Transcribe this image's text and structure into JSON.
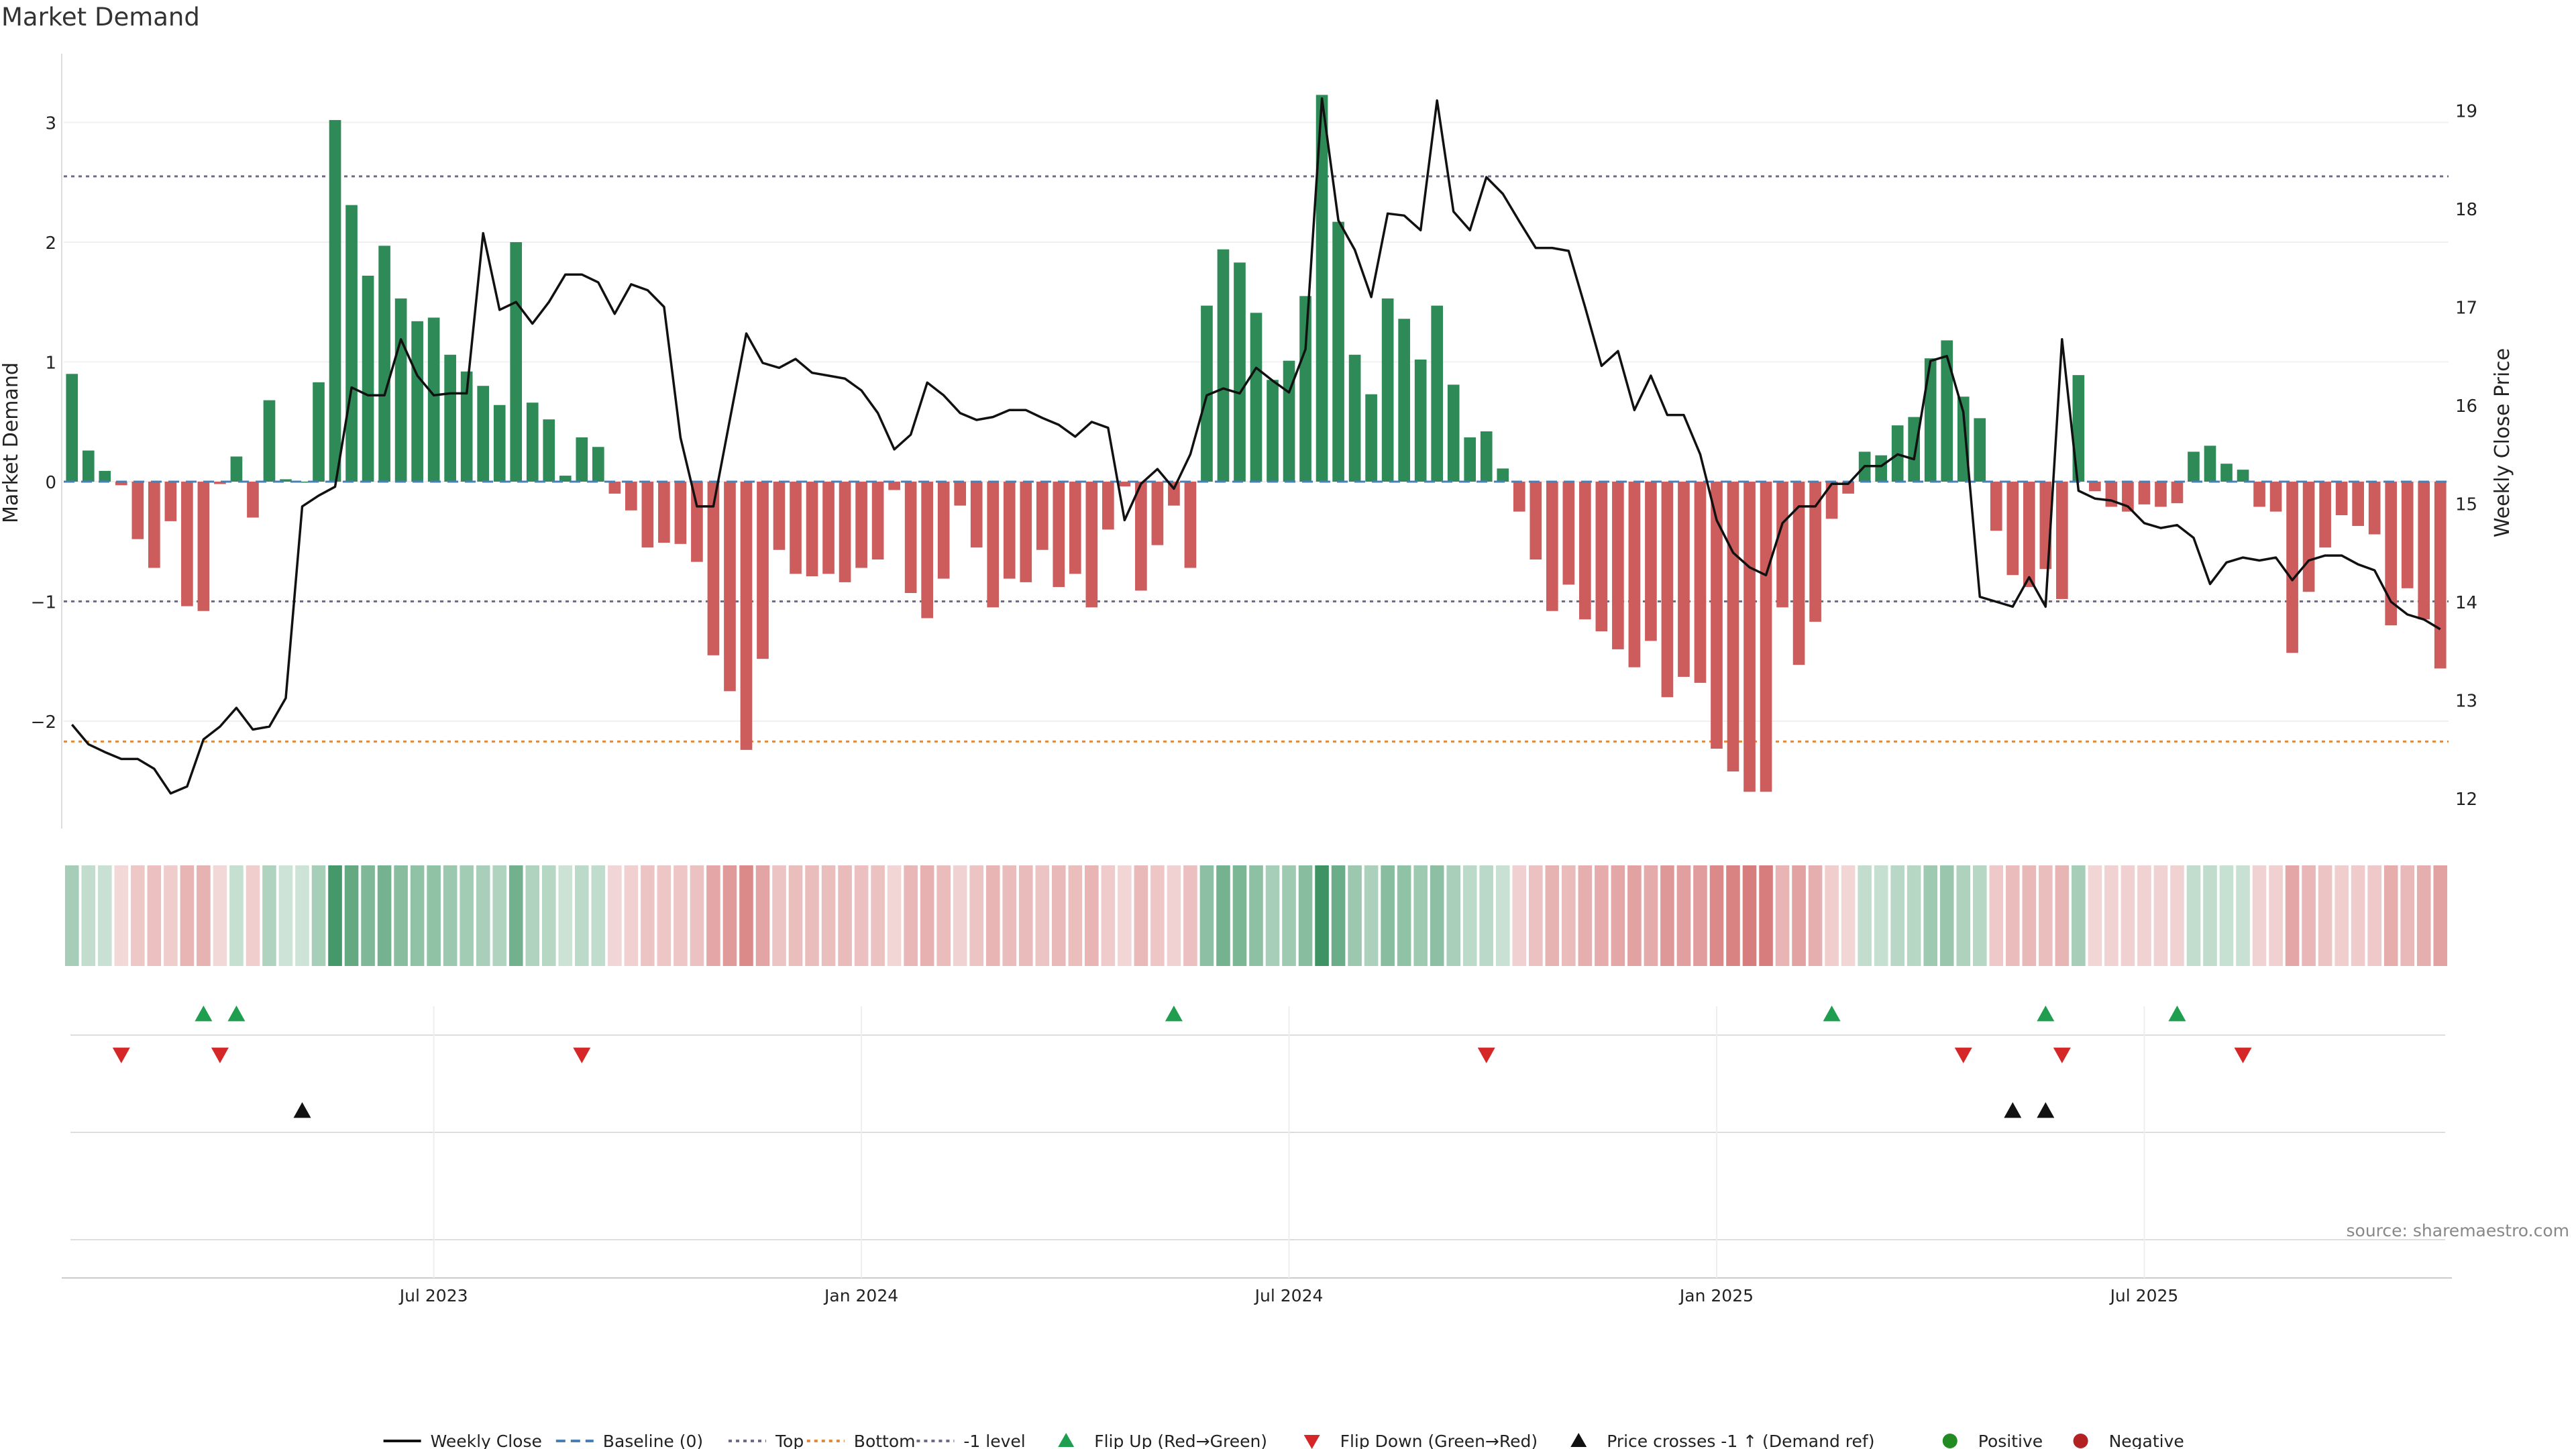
{
  "title": "Market Demand",
  "source": "source: sharemaestro.com",
  "chart_data": {
    "type": "bar",
    "title": "Market Demand",
    "ylabel": "Market Demand",
    "y2label": "Weekly Close Price",
    "ylim": [
      -2.9,
      3.35
    ],
    "y2lim": [
      11.8,
      19.25
    ],
    "yticks": [
      3,
      2,
      1,
      0,
      -1,
      -2
    ],
    "yticklabels": [
      "3",
      "2",
      "1",
      "0",
      "−1",
      "−2"
    ],
    "y2ticks": [
      19,
      18,
      17,
      16,
      15,
      14,
      13,
      12
    ],
    "y2ticklabels": [
      "19",
      "18",
      "17",
      "16",
      "15",
      "14",
      "13",
      "12"
    ],
    "xticks": [
      {
        "label": "Jul 2023",
        "week": 22
      },
      {
        "label": "Jan 2024",
        "week": 48
      },
      {
        "label": "Jul 2024",
        "week": 74
      },
      {
        "label": "Jan 2025",
        "week": 100
      },
      {
        "label": "Jul 2025",
        "week": 126
      }
    ],
    "reference_lines": [
      {
        "name": "Top",
        "value": 2.55,
        "color": "#6c6c8a"
      },
      {
        "name": "Bottom",
        "value": -2.17,
        "color": "#e08a3c"
      },
      {
        "name": "-1 level",
        "value": -1.0,
        "color": "#6c6c8a"
      }
    ],
    "colors": {
      "positive": "#2e8b57",
      "negative": "#cd5c5c",
      "price": "#111111",
      "baseline": "#4a7fb5",
      "flip_up": "#1f9e50",
      "flip_down": "#d62728",
      "cross": "#111111"
    },
    "series": [
      {
        "name": "Market Demand",
        "values": [
          0.9,
          0.26,
          0.09,
          -0.03,
          -0.48,
          -0.72,
          -0.33,
          -1.04,
          -1.08,
          -0.02,
          0.21,
          -0.3,
          0.68,
          0.02,
          0.0,
          0.83,
          3.02,
          2.31,
          1.72,
          1.97,
          1.53,
          1.34,
          1.37,
          1.06,
          0.92,
          0.8,
          0.64,
          2.0,
          0.66,
          0.52,
          0.05,
          0.37,
          0.29,
          -0.1,
          -0.24,
          -0.55,
          -0.51,
          -0.52,
          -0.67,
          -1.45,
          -1.75,
          -2.24,
          -1.48,
          -0.57,
          -0.77,
          -0.79,
          -0.77,
          -0.84,
          -0.72,
          -0.65,
          -0.07,
          -0.93,
          -1.14,
          -0.81,
          -0.2,
          -0.55,
          -1.05,
          -0.81,
          -0.84,
          -0.57,
          -0.88,
          -0.77,
          -1.05,
          -0.4,
          -0.04,
          -0.91,
          -0.53,
          -0.2,
          -0.72,
          1.47,
          1.94,
          1.83,
          1.41,
          0.85,
          1.01,
          1.55,
          3.23,
          2.17,
          1.06,
          0.73,
          1.53,
          1.36,
          1.02,
          1.47,
          0.81,
          0.37,
          0.42,
          0.11,
          -0.25,
          -0.65,
          -1.08,
          -0.86,
          -1.15,
          -1.25,
          -1.4,
          -1.55,
          -1.33,
          -1.8,
          -1.63,
          -1.68,
          -2.23,
          -2.42,
          -2.59,
          -2.59,
          -1.05,
          -1.53,
          -1.17,
          -0.31,
          -0.1,
          0.25,
          0.22,
          0.47,
          0.54,
          1.03,
          1.18,
          0.71,
          0.53,
          -0.41,
          -0.78,
          -0.88,
          -0.73,
          -0.98,
          0.89,
          -0.08,
          -0.21,
          -0.25,
          -0.19,
          -0.21,
          -0.18,
          0.25,
          0.3,
          0.15,
          0.1,
          -0.21,
          -0.25,
          -1.43,
          -0.92,
          -0.55,
          -0.28,
          -0.37,
          -0.44,
          -1.2,
          -0.89,
          -1.15,
          -1.56
        ],
        "color_rule": "positive green / negative red"
      },
      {
        "name": "Weekly Close",
        "axis": "right",
        "values": [
          12.75,
          12.55,
          12.47,
          12.4,
          12.4,
          12.3,
          12.05,
          12.12,
          12.6,
          12.73,
          12.92,
          12.7,
          12.73,
          13.02,
          14.97,
          15.08,
          15.17,
          16.18,
          16.1,
          16.1,
          16.67,
          16.3,
          16.1,
          16.12,
          16.12,
          17.75,
          16.97,
          17.05,
          16.83,
          17.05,
          17.33,
          17.33,
          17.25,
          16.93,
          17.23,
          17.17,
          17.0,
          15.67,
          14.97,
          14.97,
          15.85,
          16.73,
          16.43,
          16.38,
          16.47,
          16.33,
          16.3,
          16.27,
          16.15,
          15.92,
          15.55,
          15.7,
          16.23,
          16.1,
          15.92,
          15.85,
          15.88,
          15.95,
          15.95,
          15.87,
          15.8,
          15.68,
          15.83,
          15.77,
          14.83,
          15.2,
          15.35,
          15.15,
          15.5,
          16.1,
          16.17,
          16.12,
          16.38,
          16.25,
          16.13,
          16.57,
          19.12,
          17.88,
          17.58,
          17.1,
          17.95,
          17.93,
          17.78,
          19.1,
          17.97,
          17.78,
          18.32,
          18.15,
          17.87,
          17.6,
          17.6,
          17.57,
          17.0,
          16.4,
          16.55,
          15.95,
          16.3,
          15.9,
          15.9,
          15.5,
          14.83,
          14.5,
          14.35,
          14.27,
          14.8,
          14.97,
          14.97,
          15.2,
          15.2,
          15.38,
          15.38,
          15.5,
          15.45,
          16.45,
          16.5,
          15.93,
          14.05,
          14.0,
          13.95,
          14.25,
          13.95,
          16.67,
          15.13,
          15.05,
          15.03,
          14.97,
          14.8,
          14.75,
          14.78,
          14.65,
          14.18,
          14.4,
          14.45,
          14.42,
          14.45,
          14.22,
          14.42,
          14.47,
          14.47,
          14.38,
          14.32,
          14.0,
          13.87,
          13.82,
          13.72
        ],
        "color": "#111111"
      }
    ],
    "heatmap_strip": "intensity of Market Demand per week (green positive, red negative)",
    "events": {
      "flip_up": [
        8,
        10,
        67,
        107,
        120,
        128
      ],
      "flip_down": [
        3,
        9,
        31,
        86,
        115,
        121,
        132
      ],
      "price_crosses": [
        14,
        118,
        120
      ]
    },
    "legend": {
      "placement": "bottom-center",
      "items": [
        {
          "label": "Weekly Close",
          "kind": "line"
        },
        {
          "label": "Baseline (0)",
          "kind": "dashed"
        },
        {
          "label": "Top",
          "kind": "dotted"
        },
        {
          "label": "Bottom",
          "kind": "dotted-orange"
        },
        {
          "label": "-1 level",
          "kind": "dotted"
        },
        {
          "label": "Flip Up (Red→Green)",
          "kind": "triangle-up-green"
        },
        {
          "label": "Flip Down (Green→Red)",
          "kind": "triangle-down-red"
        },
        {
          "label": "Price crosses -1 ↑ (Demand ref)",
          "kind": "triangle-up-black"
        },
        {
          "label": "Positive",
          "kind": "dot-green"
        },
        {
          "label": "Negative",
          "kind": "dot-red"
        }
      ]
    }
  }
}
